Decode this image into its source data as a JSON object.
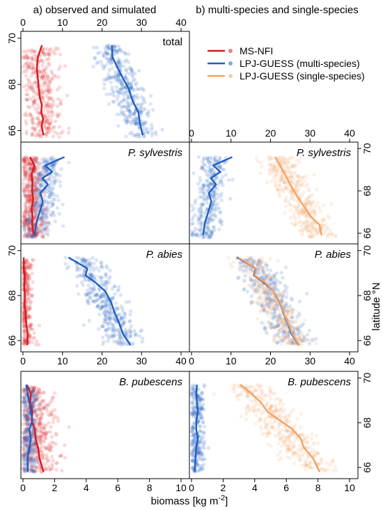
{
  "figure": {
    "heading_a": "a) observed and simulated",
    "heading_b": "b) multi-species and single-species",
    "xlabel": "biomass [kg m",
    "xlabel_sup": "-2",
    "xlabel_end": "]",
    "ylabel": "latitude °N"
  },
  "legend": {
    "items": [
      {
        "label": "MS-NFI",
        "color": "#d7191c"
      },
      {
        "label": "LPJ-GUESS (multi-species)",
        "color": "#1f5fbf"
      },
      {
        "label": "LPJ-GUESS (single-species)",
        "color": "#f4a261"
      }
    ]
  },
  "colors": {
    "observed": "#d7191c",
    "multi": "#1f5fbf",
    "single": "#f4a261"
  },
  "chart_data": [
    {
      "type": "scatter",
      "panel": "a-total",
      "label": "total",
      "xlim": [
        0,
        40
      ],
      "ylim": [
        65.5,
        70.3
      ],
      "xticks": [
        0,
        10,
        20,
        30,
        40
      ],
      "yticks": [
        66,
        68,
        70
      ],
      "series": [
        {
          "name": "MS-NFI",
          "color": "#d7191c",
          "line_x": [
            4.8,
            3.8,
            3.5,
            3.8,
            4.0,
            4.3,
            4.8,
            4.6,
            5.1,
            4.7,
            5.2
          ],
          "line_y": [
            69.7,
            69.2,
            68.7,
            68.2,
            67.8,
            67.4,
            67.1,
            66.8,
            66.5,
            66.2,
            65.8
          ],
          "cloud": {
            "x_center": [
              4,
              5
            ],
            "x_spread": 4.5,
            "y_range": [
              65.7,
              69.6
            ],
            "points": 350
          }
        },
        {
          "name": "LPJ-GUESS (multi-species)",
          "color": "#1f5fbf",
          "line_x": [
            22.5,
            22.6,
            24.0,
            25.5,
            26.8,
            27.5,
            28.3,
            29.2,
            29.6,
            30.3
          ],
          "line_y": [
            69.7,
            69.2,
            68.7,
            68.2,
            67.8,
            67.4,
            67.1,
            66.8,
            66.3,
            65.8
          ],
          "cloud": {
            "x_center": [
              22,
              30
            ],
            "x_spread": 4.2,
            "y_range": [
              65.7,
              69.7
            ],
            "points": 380
          }
        }
      ]
    },
    {
      "type": "scatter",
      "panel": "a-P.sylvestris",
      "label": "P. sylvestris",
      "xlim": [
        0,
        40
      ],
      "ylim": [
        65.5,
        70.3
      ],
      "series": [
        {
          "name": "MS-NFI",
          "color": "#d7191c",
          "line_x": [
            1.8,
            2.9,
            2.2,
            2.4,
            2.3,
            2.6,
            2.2,
            2.4,
            2.3,
            2.7
          ],
          "line_y": [
            69.6,
            69.2,
            68.8,
            68.4,
            68.0,
            67.6,
            67.2,
            66.8,
            66.4,
            65.9
          ],
          "cloud": {
            "x_center": [
              2,
              2.5
            ],
            "x_spread": 2.5,
            "y_range": [
              65.8,
              69.6
            ],
            "points": 420
          }
        },
        {
          "name": "LPJ-GUESS (multi-species)",
          "color": "#1f5fbf",
          "line_x": [
            10.5,
            5.6,
            7.4,
            4.9,
            6.3,
            4.4,
            5.0,
            4.4,
            3.4,
            2.9
          ],
          "line_y": [
            69.6,
            69.2,
            68.9,
            68.6,
            68.3,
            67.9,
            67.5,
            67.1,
            66.5,
            65.9
          ],
          "cloud": {
            "x_center": [
              7,
              3
            ],
            "x_spread": 3.5,
            "y_range": [
              65.8,
              69.6
            ],
            "points": 300
          }
        }
      ]
    },
    {
      "type": "scatter",
      "panel": "b-P.sylvestris",
      "label": "P. sylvestris",
      "xlim": [
        0,
        40
      ],
      "ylim": [
        65.5,
        70.3
      ],
      "xticks": [
        0,
        10,
        20,
        30,
        40
      ],
      "yticks": [
        66,
        68,
        70
      ],
      "series": [
        {
          "name": "LPJ-GUESS (multi-species)",
          "color": "#1f5fbf",
          "line_x": [
            10.3,
            5.5,
            7.3,
            4.9,
            6.2,
            4.4,
            5.0,
            4.4,
            3.4,
            2.9
          ],
          "line_y": [
            69.6,
            69.2,
            68.9,
            68.6,
            68.3,
            67.9,
            67.5,
            67.1,
            66.5,
            65.9
          ],
          "cloud": {
            "x_center": [
              6,
              3
            ],
            "x_spread": 3.5,
            "y_range": [
              65.8,
              69.6
            ],
            "points": 300
          }
        },
        {
          "name": "LPJ-GUESS (single-species)",
          "color": "#f4a261",
          "line_x": [
            21.2,
            22.4,
            23.6,
            24.7,
            25.9,
            27.2,
            28.7,
            30.1,
            32.4,
            32.9
          ],
          "line_y": [
            69.6,
            69.2,
            68.8,
            68.4,
            68.0,
            67.6,
            67.2,
            66.8,
            66.4,
            65.9
          ],
          "cloud": {
            "x_center": [
              22,
              32
            ],
            "x_spread": 4.5,
            "y_range": [
              65.8,
              69.6
            ],
            "points": 380
          }
        }
      ]
    },
    {
      "type": "scatter",
      "panel": "a-P.abies",
      "label": "P. abies",
      "xlim": [
        0,
        40
      ],
      "ylim": [
        65.5,
        70.3
      ],
      "xticks": [
        0,
        10,
        20,
        30,
        40
      ],
      "yticks": [
        66,
        68,
        70
      ],
      "series": [
        {
          "name": "MS-NFI",
          "color": "#d7191c",
          "line_x": [
            0.2,
            0.2,
            0.5,
            0.3,
            0.5,
            0.4,
            0.7,
            0.8,
            1.2,
            1.1
          ],
          "line_y": [
            69.7,
            69.2,
            68.8,
            68.4,
            68.0,
            67.6,
            67.2,
            66.8,
            66.3,
            65.8
          ],
          "cloud": {
            "x_center": [
              0.5,
              1
            ],
            "x_spread": 2.0,
            "y_range": [
              65.8,
              69.6
            ],
            "points": 250
          }
        },
        {
          "name": "LPJ-GUESS (multi-species)",
          "color": "#1f5fbf",
          "line_x": [
            11.5,
            16.3,
            15.8,
            18.2,
            20.8,
            22.3,
            23.3,
            24.3,
            25.3,
            27.2
          ],
          "line_y": [
            69.7,
            69.2,
            68.9,
            68.6,
            68.2,
            67.7,
            67.2,
            66.8,
            66.3,
            65.8
          ],
          "cloud": {
            "x_center": [
              15,
              26
            ],
            "x_spread": 4.5,
            "y_range": [
              65.8,
              69.7
            ],
            "points": 380
          }
        }
      ]
    },
    {
      "type": "scatter",
      "panel": "b-P.abies",
      "label": "P. abies",
      "xlim": [
        0,
        40
      ],
      "ylim": [
        65.5,
        70.3
      ],
      "xticks": [
        0,
        10,
        20,
        30,
        40
      ],
      "yticks": [
        66,
        68,
        70
      ],
      "series": [
        {
          "name": "LPJ-GUESS (multi-species)",
          "color": "#1f5fbf",
          "line_x": [
            11.5,
            16.3,
            15.8,
            18.2,
            20.8,
            22.3,
            23.3,
            24.3,
            25.3,
            27.2
          ],
          "line_y": [
            69.7,
            69.2,
            68.9,
            68.6,
            68.2,
            67.7,
            67.2,
            66.8,
            66.3,
            65.8
          ],
          "cloud": {
            "x_center": [
              15,
              26
            ],
            "x_spread": 4.5,
            "y_range": [
              65.8,
              69.7
            ],
            "points": 320
          }
        },
        {
          "name": "LPJ-GUESS (single-species)",
          "color": "#f4a261",
          "line_x": [
            11.8,
            16.4,
            16.0,
            18.5,
            20.8,
            22.4,
            23.4,
            24.4,
            25.5,
            27.3
          ],
          "line_y": [
            69.7,
            69.2,
            68.9,
            68.6,
            68.2,
            67.7,
            67.2,
            66.8,
            66.3,
            65.8
          ],
          "cloud": {
            "x_center": [
              15,
              26
            ],
            "x_spread": 4.5,
            "y_range": [
              65.8,
              69.7
            ],
            "points": 320
          }
        }
      ]
    },
    {
      "type": "scatter",
      "panel": "a-B.pubescens",
      "label": "B. pubescens",
      "xlim": [
        0,
        10
      ],
      "ylim": [
        65.5,
        70.3
      ],
      "xticks": [
        0,
        2,
        4,
        6,
        8,
        10
      ],
      "yticks": [
        66,
        68,
        70
      ],
      "series": [
        {
          "name": "MS-NFI",
          "color": "#d7191c",
          "line_x": [
            0.25,
            0.5,
            0.45,
            0.6,
            0.55,
            0.75,
            0.8,
            0.95,
            1.05,
            1.3
          ],
          "line_y": [
            69.7,
            69.3,
            68.9,
            68.5,
            68.1,
            67.7,
            67.3,
            66.9,
            66.4,
            65.8
          ],
          "cloud": {
            "x_center": [
              0.6,
              1.0
            ],
            "x_spread": 1.2,
            "y_range": [
              65.8,
              69.6
            ],
            "points": 420
          }
        },
        {
          "name": "LPJ-GUESS (multi-species)",
          "color": "#1f5fbf",
          "line_x": [
            0.2,
            0.3,
            0.4,
            0.5,
            0.6,
            0.4,
            0.5,
            0.4,
            0.3,
            0.3
          ],
          "line_y": [
            69.7,
            69.3,
            68.9,
            68.5,
            68.1,
            67.7,
            67.3,
            66.9,
            66.4,
            65.8
          ],
          "cloud": {
            "x_center": [
              0.4,
              0.4
            ],
            "x_spread": 0.5,
            "y_range": [
              65.8,
              69.6
            ],
            "points": 250
          }
        }
      ]
    },
    {
      "type": "scatter",
      "panel": "b-B.pubescens",
      "label": "B. pubescens",
      "xlim": [
        0,
        10
      ],
      "ylim": [
        65.5,
        70.3
      ],
      "xticks": [
        0,
        2,
        4,
        6,
        8,
        10
      ],
      "yticks": [
        66,
        68,
        70
      ],
      "series": [
        {
          "name": "LPJ-GUESS (multi-species)",
          "color": "#1f5fbf",
          "line_x": [
            0.35,
            0.3,
            0.35,
            0.4,
            0.3,
            0.3,
            0.4,
            0.3,
            0.25,
            0.2
          ],
          "line_y": [
            69.7,
            69.3,
            68.9,
            68.5,
            68.1,
            67.7,
            67.3,
            66.9,
            66.4,
            65.8
          ],
          "cloud": {
            "x_center": [
              0.35,
              0.35
            ],
            "x_spread": 0.45,
            "y_range": [
              65.8,
              69.7
            ],
            "points": 280
          }
        },
        {
          "name": "LPJ-GUESS (single-species)",
          "color": "#f4a261",
          "line_x": [
            3.1,
            3.8,
            4.4,
            4.8,
            5.6,
            6.4,
            6.9,
            7.1,
            7.7,
            8.1
          ],
          "line_y": [
            69.7,
            69.3,
            68.9,
            68.5,
            68.1,
            67.7,
            67.3,
            66.9,
            66.4,
            65.8
          ],
          "cloud": {
            "x_center": [
              3.5,
              8
            ],
            "x_spread": 1.4,
            "y_range": [
              65.8,
              69.7
            ],
            "points": 380
          }
        }
      ]
    }
  ]
}
